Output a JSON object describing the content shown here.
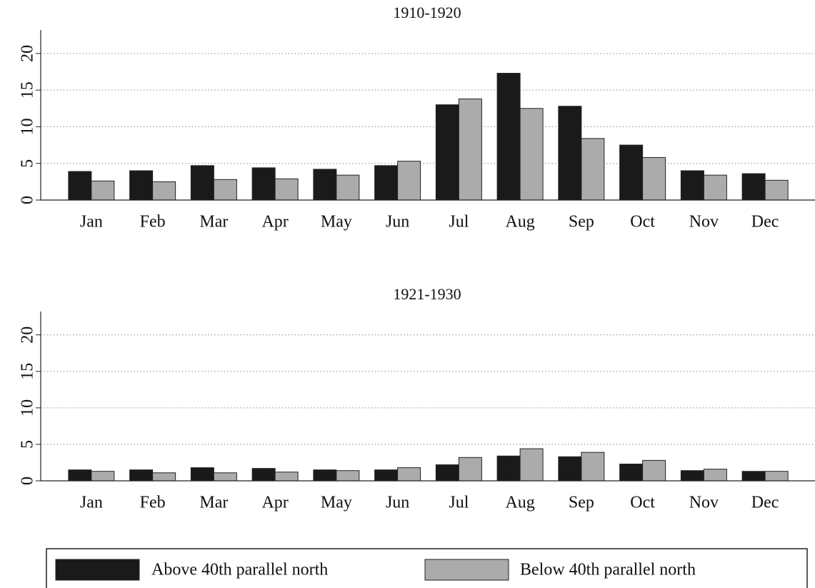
{
  "chart_data": [
    {
      "type": "bar",
      "title": "1910-1920",
      "categories": [
        "Jan",
        "Feb",
        "Mar",
        "Apr",
        "May",
        "Jun",
        "Jul",
        "Aug",
        "Sep",
        "Oct",
        "Nov",
        "Dec"
      ],
      "series": [
        {
          "name": "Above 40th parallel north",
          "color": "#1a1a1a",
          "values": [
            3.9,
            4.0,
            4.7,
            4.4,
            4.2,
            4.7,
            13.0,
            17.3,
            12.8,
            7.5,
            4.0,
            3.6
          ]
        },
        {
          "name": "Below 40th parallel north",
          "color": "#ababab",
          "values": [
            2.6,
            2.5,
            2.8,
            2.9,
            3.4,
            5.3,
            13.8,
            12.5,
            8.4,
            5.8,
            3.4,
            2.7
          ]
        }
      ],
      "ylim": [
        0,
        23.2
      ],
      "yticks": [
        0,
        5,
        10,
        15,
        20
      ],
      "grid": true
    },
    {
      "type": "bar",
      "title": "1921-1930",
      "categories": [
        "Jan",
        "Feb",
        "Mar",
        "Apr",
        "May",
        "Jun",
        "Jul",
        "Aug",
        "Sep",
        "Oct",
        "Nov",
        "Dec"
      ],
      "series": [
        {
          "color": "#1a1a1a",
          "values": [
            1.5,
            1.5,
            1.8,
            1.7,
            1.5,
            1.5,
            2.2,
            3.4,
            3.3,
            2.3,
            1.4,
            1.3
          ]
        },
        {
          "color": "#ababab",
          "values": [
            1.3,
            1.1,
            1.1,
            1.2,
            1.4,
            1.8,
            3.2,
            4.4,
            3.9,
            2.8,
            1.6,
            1.3
          ]
        }
      ],
      "ylim": [
        0,
        23.2
      ],
      "yticks": [
        0,
        5,
        10,
        15,
        20
      ],
      "grid": true
    }
  ]
}
